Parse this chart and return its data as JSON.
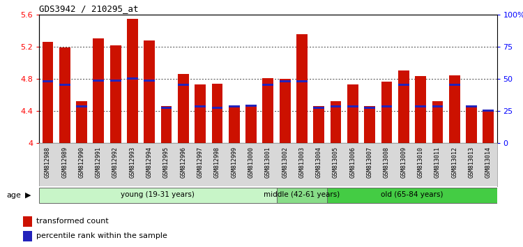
{
  "title": "GDS3942 / 210295_at",
  "samples": [
    "GSM812988",
    "GSM812989",
    "GSM812990",
    "GSM812991",
    "GSM812992",
    "GSM812993",
    "GSM812994",
    "GSM812995",
    "GSM812996",
    "GSM812997",
    "GSM812998",
    "GSM812999",
    "GSM813000",
    "GSM813001",
    "GSM813002",
    "GSM813003",
    "GSM813004",
    "GSM813005",
    "GSM813006",
    "GSM813007",
    "GSM813008",
    "GSM813009",
    "GSM813010",
    "GSM813011",
    "GSM813012",
    "GSM813013",
    "GSM813014"
  ],
  "red_values": [
    5.26,
    5.19,
    4.52,
    5.31,
    5.22,
    5.55,
    5.28,
    4.46,
    4.86,
    4.73,
    4.74,
    4.47,
    4.47,
    4.81,
    4.8,
    5.36,
    4.46,
    4.52,
    4.73,
    4.46,
    4.77,
    4.91,
    4.84,
    4.52,
    4.85,
    4.47,
    4.39
  ],
  "blue_values": [
    4.77,
    4.73,
    4.46,
    4.78,
    4.78,
    4.81,
    4.78,
    4.44,
    4.73,
    4.46,
    4.44,
    4.46,
    4.47,
    4.73,
    4.77,
    4.77,
    4.44,
    4.46,
    4.46,
    4.44,
    4.46,
    4.73,
    4.46,
    4.46,
    4.73,
    4.46,
    4.41
  ],
  "groups": [
    {
      "label": "young (19-31 years)",
      "start": 0,
      "end": 14,
      "color": "#c8f5c8"
    },
    {
      "label": "middle (42-61 years)",
      "start": 14,
      "end": 17,
      "color": "#88dd88"
    },
    {
      "label": "old (65-84 years)",
      "start": 17,
      "end": 27,
      "color": "#44cc44"
    }
  ],
  "ymin": 4.0,
  "ymax": 5.6,
  "yticks": [
    4.0,
    4.4,
    4.8,
    5.2,
    5.6
  ],
  "ytick_labels": [
    "4",
    "4.4",
    "4.8",
    "5.2",
    "5.6"
  ],
  "right_yticks": [
    0,
    25,
    50,
    75,
    100
  ],
  "right_ytick_labels": [
    "0",
    "25",
    "50",
    "75",
    "100%"
  ],
  "bar_color": "#cc1100",
  "blue_color": "#2222bb",
  "xlabel_bg": "#d8d8d8"
}
